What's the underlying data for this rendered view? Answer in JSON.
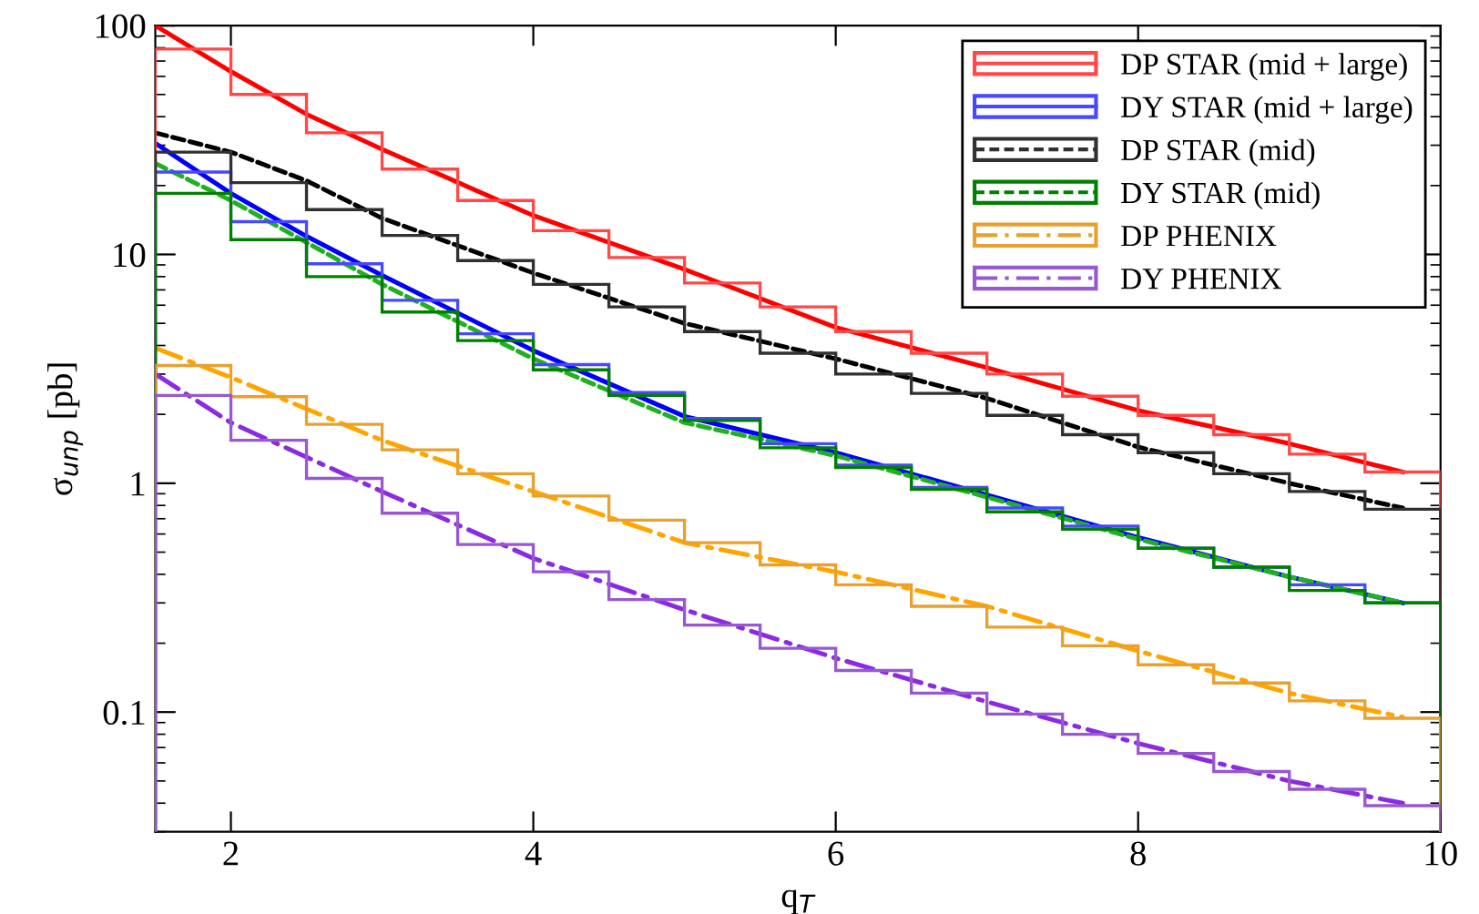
{
  "chart_data": {
    "type": "histogram",
    "xlabel": "q$_{T}$",
    "ylabel": "σ$_{unp}$ [pb]",
    "bins": [
      1.5,
      2,
      2.5,
      3,
      3.5,
      4,
      4.5,
      5,
      5.5,
      6,
      6.5,
      7,
      7.5,
      8,
      8.5,
      9,
      9.5,
      10
    ],
    "xlim": [
      1.5,
      10
    ],
    "xticks": [
      2,
      4,
      6,
      8,
      10
    ],
    "ylim": [
      0.03,
      100
    ],
    "yticks": [
      0.1,
      1,
      10,
      100
    ],
    "log": "y",
    "legend": "top right",
    "grid": false,
    "series": [
      {
        "name": "DP STAR (mid + large)",
        "color": "#ff4848",
        "line_style": "solid",
        "values": [
          79,
          50,
          34,
          23.6,
          17.2,
          12.7,
          9.7,
          7.5,
          5.9,
          4.6,
          3.7,
          3.0,
          2.4,
          1.98,
          1.63,
          1.34,
          1.12
        ]
      },
      {
        "name": "DY STAR (mid + large)",
        "color": "#4848ff",
        "line_style": "solid",
        "values": [
          22.9,
          13.9,
          9.1,
          6.3,
          4.5,
          3.3,
          2.49,
          1.92,
          1.49,
          1.2,
          0.96,
          0.78,
          0.65,
          0.52,
          0.43,
          0.36,
          0.3
        ]
      },
      {
        "name": "DP STAR (mid)",
        "color": "#303030",
        "line_style": "dashed",
        "values": [
          28,
          20.6,
          15.7,
          12.1,
          9.4,
          7.4,
          5.9,
          4.6,
          3.7,
          3.0,
          2.47,
          1.98,
          1.63,
          1.36,
          1.1,
          0.92,
          0.77
        ]
      },
      {
        "name": "DY STAR (mid)",
        "color": "#008000",
        "line_style": "dashed",
        "values": [
          18.5,
          11.6,
          8.0,
          5.6,
          4.2,
          3.13,
          2.42,
          1.88,
          1.43,
          1.17,
          0.94,
          0.75,
          0.63,
          0.52,
          0.43,
          0.34,
          0.3
        ]
      },
      {
        "name": "DP PHENIX",
        "color": "#e8a030",
        "line_style": "dashdot",
        "values": [
          3.27,
          2.39,
          1.81,
          1.4,
          1.1,
          0.88,
          0.69,
          0.55,
          0.44,
          0.36,
          0.29,
          0.235,
          0.195,
          0.161,
          0.134,
          0.112,
          0.094
        ]
      },
      {
        "name": "DY PHENIX",
        "color": "#9858d0",
        "line_style": "dashdot",
        "values": [
          2.42,
          1.54,
          1.05,
          0.74,
          0.54,
          0.41,
          0.31,
          0.24,
          0.19,
          0.152,
          0.121,
          0.098,
          0.08,
          0.066,
          0.055,
          0.046,
          0.039
        ]
      },
      {
        "type": "line",
        "color": "#ff0000",
        "line_style": "solid",
        "x": [
          1.5,
          2,
          2.5,
          3,
          4,
          5,
          6,
          7,
          8,
          9,
          9.75
        ],
        "values": [
          100,
          63,
          41,
          28.8,
          14.8,
          8.6,
          4.8,
          3.2,
          2.08,
          1.49,
          1.12
        ]
      },
      {
        "type": "line",
        "color": "#0000ff",
        "line_style": "solid",
        "x": [
          1.5,
          2,
          2.5,
          3,
          4,
          5,
          6,
          7,
          8,
          9,
          9.75
        ],
        "values": [
          30.6,
          18.5,
          12,
          8.1,
          3.8,
          1.96,
          1.36,
          0.89,
          0.58,
          0.39,
          0.3
        ]
      },
      {
        "type": "line",
        "color": "#000000",
        "line_style": "dashed",
        "x": [
          1.5,
          2,
          2.5,
          3,
          4,
          5,
          6,
          7,
          8,
          9,
          9.75
        ],
        "values": [
          34,
          28,
          21,
          14.4,
          8.3,
          5.0,
          3.5,
          2.35,
          1.44,
          1.0,
          0.78
        ]
      },
      {
        "type": "line",
        "color": "#20b020",
        "line_style": "dashed",
        "x": [
          1.5,
          2,
          3,
          4,
          5,
          6,
          7,
          8,
          9,
          9.75
        ],
        "values": [
          25,
          17.2,
          7.4,
          3.5,
          1.84,
          1.32,
          0.87,
          0.57,
          0.39,
          0.3
        ]
      },
      {
        "type": "line",
        "color": "#ffa500",
        "line_style": "dashdot",
        "x": [
          1.5,
          2,
          3,
          4,
          5,
          6,
          7,
          8,
          9,
          9.75
        ],
        "values": [
          3.9,
          2.9,
          1.54,
          0.92,
          0.55,
          0.41,
          0.29,
          0.185,
          0.121,
          0.095
        ]
      },
      {
        "type": "line",
        "color": "#8a2be2",
        "line_style": "dashdot",
        "x": [
          1.5,
          2,
          3,
          4,
          5,
          6,
          7,
          8,
          9,
          9.75
        ],
        "values": [
          3.0,
          1.84,
          0.92,
          0.47,
          0.28,
          0.172,
          0.111,
          0.073,
          0.05,
          0.04
        ]
      }
    ]
  }
}
